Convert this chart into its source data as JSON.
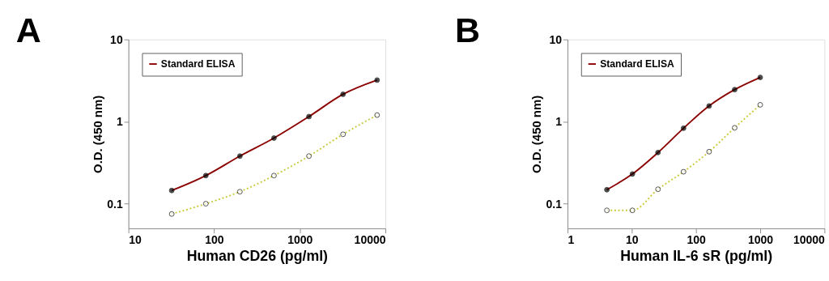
{
  "chart_data": [
    {
      "type": "line",
      "title": "A",
      "xlabel": "Human CD26 (pg/ml)",
      "ylabel": "O.D. (450 nm)",
      "log": "xy",
      "xlim": [
        10,
        10000
      ],
      "xticks": [
        10,
        100,
        1000,
        10000
      ],
      "ylim": [
        0.05,
        10
      ],
      "yticks": [
        0.1,
        1,
        10
      ],
      "grid": false,
      "legend": "top left",
      "marker": "circle",
      "x": [
        32,
        80,
        200,
        500,
        1280,
        3200,
        8000
      ],
      "series": [
        {
          "name": "Standard ELISA",
          "color": "#8b0000",
          "line_style": "solid",
          "values": [
            0.145,
            0.22,
            0.38,
            0.63,
            1.15,
            2.15,
            3.2
          ]
        },
        {
          "color": "#c8c832",
          "line_style": "dotted",
          "values": [
            0.075,
            0.1,
            0.14,
            0.22,
            0.38,
            0.7,
            1.2
          ]
        }
      ]
    },
    {
      "type": "line",
      "title": "B",
      "xlabel": "Human IL-6 sR (pg/ml)",
      "ylabel": "O.D. (450 nm)",
      "log": "xy",
      "xlim": [
        1,
        10000
      ],
      "xticks": [
        1,
        10,
        100,
        1000,
        10000
      ],
      "ylim": [
        0.05,
        10
      ],
      "yticks": [
        0.1,
        1,
        10
      ],
      "grid": false,
      "legend": "top left",
      "marker": "circle",
      "x": [
        4.1,
        10.24,
        25.6,
        64,
        160,
        400,
        1000
      ],
      "series": [
        {
          "name": "Standard ELISA",
          "color": "#8b0000",
          "line_style": "solid",
          "values": [
            0.148,
            0.23,
            0.42,
            0.83,
            1.55,
            2.45,
            3.45
          ]
        },
        {
          "color": "#c8c832",
          "line_style": "dotted",
          "values": [
            0.083,
            0.083,
            0.15,
            0.245,
            0.43,
            0.84,
            1.6
          ]
        }
      ]
    }
  ]
}
